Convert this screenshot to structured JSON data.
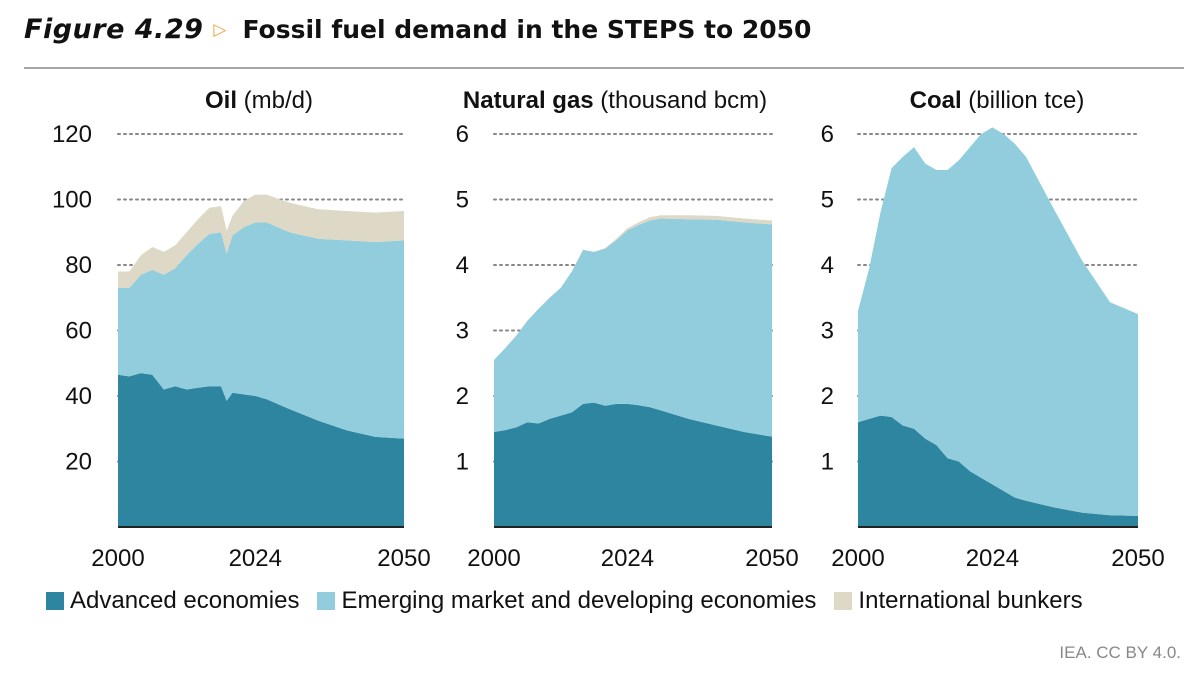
{
  "figure": {
    "number": "Figure 4.29",
    "arrow_icon": "triangle-right-outline",
    "title": "Fossil fuel demand in the STEPS to 2050"
  },
  "source": "IEA. CC BY 4.0.",
  "colors": {
    "advanced": "#2e859f",
    "emerging": "#92cddd",
    "bunkers": "#ddd9c6",
    "accent": "#f0a33c",
    "grid": "#888888"
  },
  "legend": [
    {
      "key": "advanced",
      "label": "Advanced economies"
    },
    {
      "key": "emerging",
      "label": "Emerging market and developing economies"
    },
    {
      "key": "bunkers",
      "label": "International bunkers"
    }
  ],
  "chart_data": [
    {
      "type": "area",
      "stacked": true,
      "title_bold": "Oil",
      "title_unit": "(mb/d)",
      "x": [
        2000,
        2002,
        2004,
        2006,
        2008,
        2010,
        2012,
        2014,
        2016,
        2018,
        2019,
        2020,
        2022,
        2024,
        2026,
        2030,
        2035,
        2040,
        2045,
        2050
      ],
      "xticks": [
        2000,
        2024,
        2050
      ],
      "yticks": [
        20,
        40,
        60,
        80,
        100,
        120
      ],
      "ylim": [
        0,
        120
      ],
      "series": [
        {
          "name": "Advanced economies",
          "key": "advanced",
          "values": [
            46.5,
            46,
            47,
            46.5,
            42,
            43,
            42,
            42.5,
            43,
            43,
            38.5,
            41,
            40.5,
            40,
            39,
            36,
            32.5,
            29.5,
            27.5,
            27
          ]
        },
        {
          "name": "Emerging market and developing economies",
          "key": "emerging",
          "values": [
            26.5,
            27,
            30,
            32,
            35,
            36,
            41,
            44,
            46.5,
            47,
            45,
            48,
            51,
            53,
            54,
            54,
            55.5,
            58,
            59.5,
            60.5
          ]
        },
        {
          "name": "International bunkers",
          "key": "bunkers",
          "values": [
            5,
            5,
            6,
            7,
            7,
            7,
            7,
            7.5,
            8,
            8,
            7,
            6,
            8,
            8.5,
            8.5,
            9,
            9,
            9,
            9,
            9
          ]
        }
      ]
    },
    {
      "type": "area",
      "stacked": true,
      "title_bold": "Natural gas",
      "title_unit": "(thousand bcm)",
      "x": [
        2000,
        2002,
        2004,
        2006,
        2008,
        2010,
        2012,
        2014,
        2016,
        2018,
        2020,
        2022,
        2024,
        2026,
        2028,
        2030,
        2035,
        2040,
        2045,
        2050
      ],
      "xticks": [
        2000,
        2024,
        2050
      ],
      "yticks": [
        1,
        2,
        3,
        4,
        5,
        6
      ],
      "ylim": [
        0,
        6
      ],
      "series": [
        {
          "name": "Advanced economies",
          "key": "advanced",
          "values": [
            1.45,
            1.48,
            1.52,
            1.6,
            1.58,
            1.65,
            1.7,
            1.75,
            1.88,
            1.9,
            1.85,
            1.88,
            1.88,
            1.86,
            1.83,
            1.78,
            1.65,
            1.55,
            1.45,
            1.38
          ]
        },
        {
          "name": "Emerging market and developing economies",
          "key": "emerging",
          "values": [
            1.1,
            1.25,
            1.4,
            1.55,
            1.75,
            1.85,
            1.95,
            2.15,
            2.35,
            2.3,
            2.4,
            2.5,
            2.65,
            2.75,
            2.85,
            2.93,
            3.05,
            3.14,
            3.2,
            3.24
          ]
        },
        {
          "name": "International bunkers",
          "key": "bunkers",
          "values": [
            0,
            0,
            0,
            0,
            0,
            0,
            0,
            0,
            0,
            0,
            0.01,
            0.02,
            0.03,
            0.04,
            0.05,
            0.05,
            0.06,
            0.06,
            0.06,
            0.06
          ]
        }
      ]
    },
    {
      "type": "area",
      "stacked": true,
      "title_bold": "Coal",
      "title_unit": "(billion tce)",
      "x": [
        2000,
        2002,
        2004,
        2006,
        2008,
        2010,
        2012,
        2014,
        2016,
        2018,
        2020,
        2022,
        2024,
        2026,
        2028,
        2030,
        2035,
        2040,
        2045,
        2050
      ],
      "xticks": [
        2000,
        2024,
        2050
      ],
      "yticks": [
        1,
        2,
        3,
        4,
        5,
        6
      ],
      "ylim": [
        0,
        6
      ],
      "series": [
        {
          "name": "Advanced economies",
          "key": "advanced",
          "values": [
            1.6,
            1.65,
            1.7,
            1.68,
            1.55,
            1.5,
            1.35,
            1.25,
            1.05,
            1.0,
            0.85,
            0.75,
            0.65,
            0.55,
            0.45,
            0.4,
            0.3,
            0.22,
            0.18,
            0.17
          ]
        },
        {
          "name": "Emerging market and developing economies",
          "key": "emerging",
          "values": [
            1.7,
            2.3,
            3.1,
            3.8,
            4.1,
            4.3,
            4.2,
            4.2,
            4.4,
            4.6,
            4.95,
            5.25,
            5.45,
            5.45,
            5.4,
            5.25,
            4.55,
            3.85,
            3.25,
            3.08
          ]
        },
        {
          "name": "International bunkers",
          "key": "bunkers",
          "values": [
            0,
            0,
            0,
            0,
            0,
            0,
            0,
            0,
            0,
            0,
            0,
            0,
            0,
            0,
            0,
            0,
            0,
            0,
            0,
            0
          ]
        }
      ]
    }
  ]
}
